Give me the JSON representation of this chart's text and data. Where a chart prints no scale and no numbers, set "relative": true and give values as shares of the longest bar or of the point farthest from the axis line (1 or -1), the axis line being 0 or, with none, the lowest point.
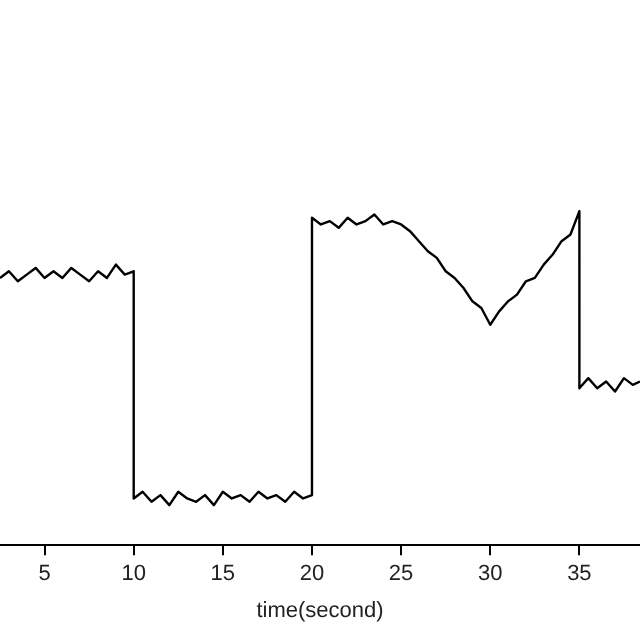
{
  "chart_data": {
    "type": "line",
    "xlabel": "time(second)",
    "relative": true,
    "grid": false,
    "legend": false,
    "marker": "none",
    "line_style": "solid",
    "xlim": [
      2.5,
      38.4
    ],
    "xticks": [
      5,
      10,
      15,
      20,
      25,
      30,
      35
    ],
    "x": [
      2.5,
      3,
      3.5,
      4,
      4.5,
      5,
      5.5,
      6,
      6.5,
      7,
      7.5,
      8,
      8.5,
      9,
      9.5,
      10,
      10,
      10.5,
      11,
      11.5,
      12,
      12.5,
      13,
      13.5,
      14,
      14.5,
      15,
      15.5,
      16,
      16.5,
      17,
      17.5,
      18,
      18.5,
      19,
      19.5,
      20,
      20,
      20.5,
      21,
      21.5,
      22,
      22.5,
      23,
      23.5,
      24,
      24.5,
      25,
      25.5,
      26,
      26.5,
      27,
      27.5,
      28,
      28.5,
      29,
      29.5,
      30,
      30.5,
      31,
      31.5,
      32,
      32.5,
      33,
      33.5,
      34,
      34.5,
      35,
      35,
      35.5,
      36,
      36.5,
      37,
      37.5,
      38,
      38.4
    ],
    "series": [
      {
        "color": "#000000",
        "values": [
          0.8,
          0.82,
          0.79,
          0.81,
          0.83,
          0.8,
          0.82,
          0.8,
          0.83,
          0.81,
          0.79,
          0.82,
          0.8,
          0.84,
          0.81,
          0.82,
          0.14,
          0.16,
          0.13,
          0.15,
          0.12,
          0.16,
          0.14,
          0.13,
          0.15,
          0.12,
          0.16,
          0.14,
          0.15,
          0.13,
          0.16,
          0.14,
          0.15,
          0.13,
          0.16,
          0.14,
          0.15,
          0.98,
          0.96,
          0.97,
          0.95,
          0.98,
          0.96,
          0.97,
          0.99,
          0.96,
          0.97,
          0.96,
          0.94,
          0.91,
          0.88,
          0.86,
          0.82,
          0.8,
          0.77,
          0.73,
          0.71,
          0.66,
          0.7,
          0.73,
          0.75,
          0.79,
          0.8,
          0.84,
          0.87,
          0.91,
          0.93,
          1,
          0.47,
          0.5,
          0.47,
          0.49,
          0.46,
          0.5,
          0.48,
          0.49
        ]
      }
    ]
  }
}
